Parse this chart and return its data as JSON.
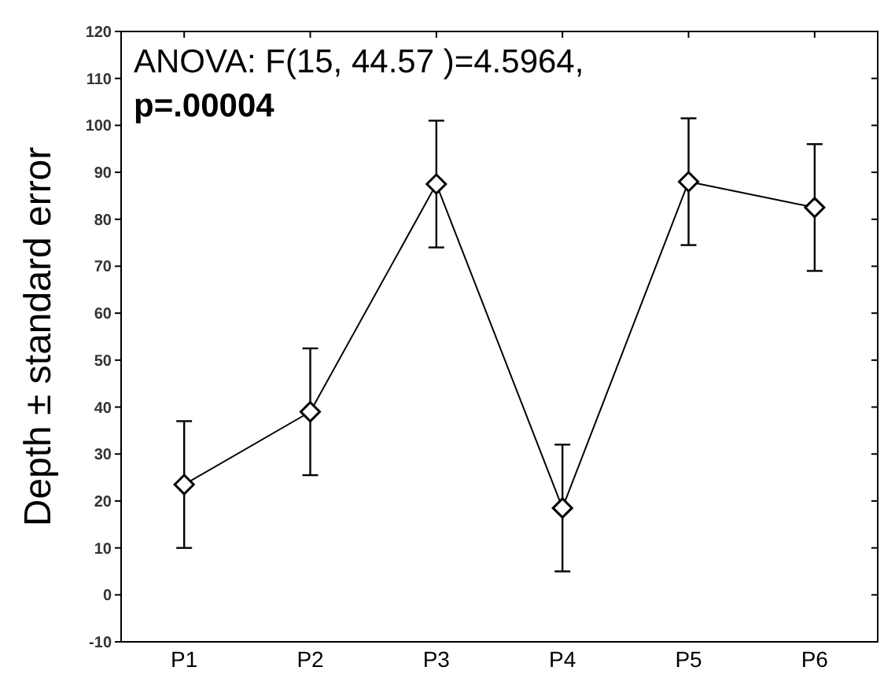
{
  "chart_data": {
    "type": "line",
    "ylabel": "Depth ± standard error",
    "categories": [
      "P1",
      "P2",
      "P3",
      "P4",
      "P5",
      "P6"
    ],
    "series": [
      {
        "color": "#000000",
        "values": [
          23.5,
          39,
          87.5,
          18.5,
          88,
          82.5
        ],
        "errors": [
          13.5,
          13.5,
          13.5,
          13.5,
          13.5,
          13.5
        ]
      }
    ],
    "ylim": [
      -10,
      120
    ],
    "yticks": [
      -10,
      0,
      10,
      20,
      30,
      40,
      50,
      60,
      70,
      80,
      90,
      100,
      110,
      120
    ],
    "marker": "diamond",
    "line_style": "solid",
    "annotations": [
      "ANOVA: F(15, 44.57 )=4.5964,",
      "p=.00004"
    ]
  }
}
